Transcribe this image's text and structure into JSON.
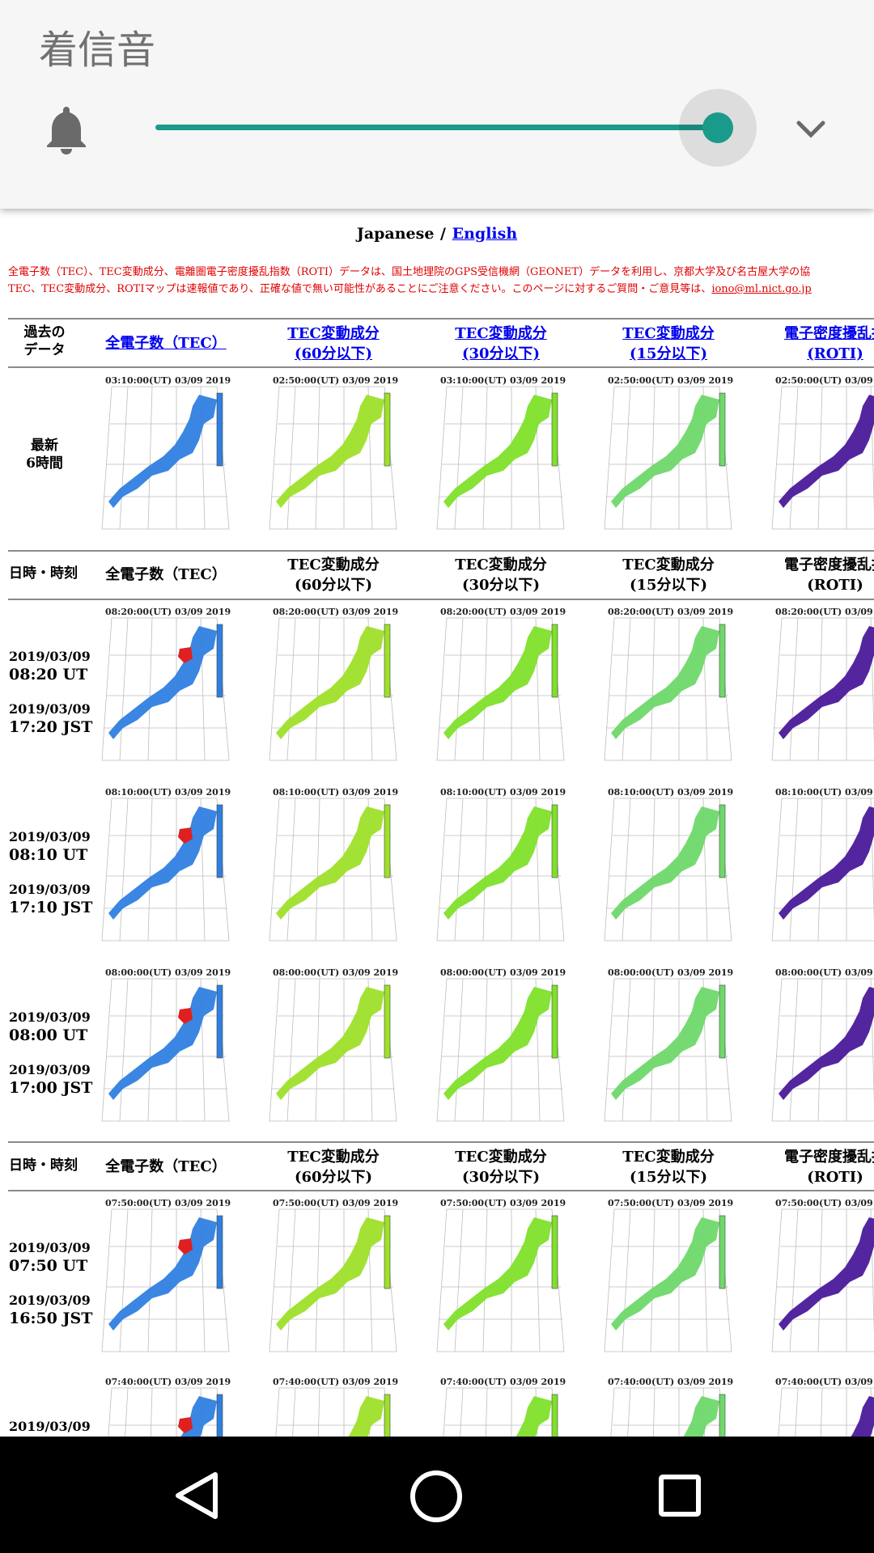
{
  "volume": {
    "title": "着信音",
    "level_fraction": 0.97,
    "accent_color": "#1a9a8a",
    "icon": "bell-icon",
    "expand_icon": "chevron-down-icon"
  },
  "language": {
    "japanese": "Japanese",
    "separator": "/",
    "english": "English"
  },
  "notice": {
    "line1": "全電子数（TEC）、TEC変動成分、電離圏電子密度擾乱指数（ROTI）データは、国土地理院のGPS受信機網（GEONET）データを利用し、京都大学及び名古屋大学の協",
    "line2": "TEC、TEC変動成分、ROTIマップは速報値であり、正確な値で無い可能性があることにご注意ください。このページに対するご質問・ご意見等は、",
    "email": "iono@ml.nict.go.jp"
  },
  "table": {
    "past": {
      "label_l1": "過去の",
      "label_l2": "データ"
    },
    "headers_link": [
      {
        "l1": "全電子数（TEC）",
        "l2": ""
      },
      {
        "l1": "TEC変動成分",
        "l2": "(60分以下)"
      },
      {
        "l1": "TEC変動成分",
        "l2": "(30分以下)"
      },
      {
        "l1": "TEC変動成分",
        "l2": "(15分以下)"
      },
      {
        "l1": "電子密度擾乱指",
        "l2": "(ROTI)"
      }
    ],
    "latest": {
      "label_l1": "最新",
      "label_l2": "6時間",
      "captions": [
        "03:10:00(UT)  03/09 2019",
        "02:50:00(UT)  03/09 2019",
        "03:10:00(UT)  03/09 2019",
        "02:50:00(UT)  03/09 2019",
        "02:50:00(UT)  03/09 2019"
      ]
    },
    "header_plain": {
      "datetime": "日時・時刻",
      "cols": [
        {
          "l1": "全電子数（TEC）",
          "l2": ""
        },
        {
          "l1": "TEC変動成分",
          "l2": "(60分以下)"
        },
        {
          "l1": "TEC変動成分",
          "l2": "(30分以下)"
        },
        {
          "l1": "TEC変動成分",
          "l2": "(15分以下)"
        },
        {
          "l1": "電子密度擾乱指",
          "l2": "(ROTI)"
        }
      ]
    },
    "rows": [
      {
        "ut_date": "2019/03/09",
        "ut_time": "08:20 UT",
        "jst_date": "2019/03/09",
        "jst_time": "17:20 JST",
        "caption": "08:20:00(UT)  03/09 2019"
      },
      {
        "ut_date": "2019/03/09",
        "ut_time": "08:10 UT",
        "jst_date": "2019/03/09",
        "jst_time": "17:10 JST",
        "caption": "08:10:00(UT)  03/09 2019"
      },
      {
        "ut_date": "2019/03/09",
        "ut_time": "08:00 UT",
        "jst_date": "2019/03/09",
        "jst_time": "17:00 JST",
        "caption": "08:00:00(UT)  03/09 2019"
      },
      {
        "ut_date": "2019/03/09",
        "ut_time": "07:50 UT",
        "jst_date": "2019/03/09",
        "jst_time": "16:50 JST",
        "caption": "07:50:00(UT)  03/09 2019"
      },
      {
        "ut_date": "2019/03/09",
        "ut_time": "",
        "jst_date": "",
        "jst_time": "",
        "caption": "07:40:00(UT)  03/09 2019"
      }
    ],
    "map_colors": {
      "tec": "#2f7fe0",
      "tec_hot": "#e02020",
      "var60": "#9ee02a",
      "var30": "#7fe02a",
      "var15": "#6fd86a",
      "roti": "#4a1a9a"
    }
  },
  "navbar": {
    "back_icon": "back-icon",
    "home_icon": "home-icon",
    "recents_icon": "recents-icon"
  }
}
